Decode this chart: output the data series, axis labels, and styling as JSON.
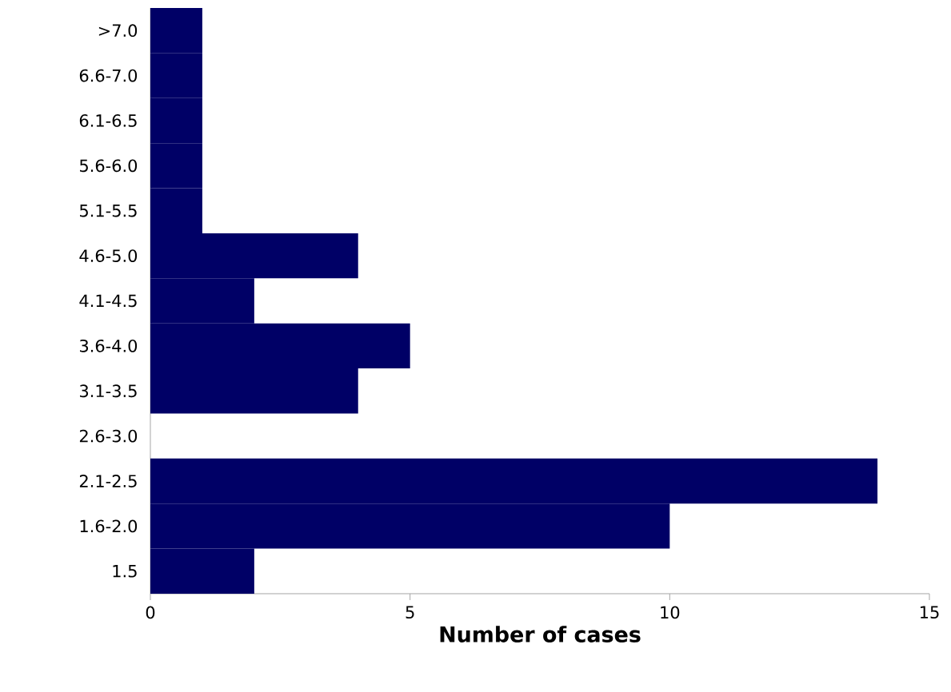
{
  "chart_data": {
    "type": "bar",
    "orientation": "horizontal",
    "xlabel": "Number of cases",
    "categories": [
      ">7.0",
      "6.6-7.0",
      "6.1-6.5",
      "5.6-6.0",
      "5.1-5.5",
      "4.6-5.0",
      "4.1-4.5",
      "3.6-4.0",
      "3.1-3.5",
      "2.6-3.0",
      "2.1-2.5",
      "1.6-2.0",
      "1.5"
    ],
    "values": [
      1,
      1,
      1,
      1,
      1,
      4,
      2,
      5,
      4,
      0,
      14,
      10,
      2
    ],
    "color": "#000066",
    "xlim": [
      0,
      15
    ],
    "xticks": [
      0,
      5,
      10,
      15
    ]
  }
}
